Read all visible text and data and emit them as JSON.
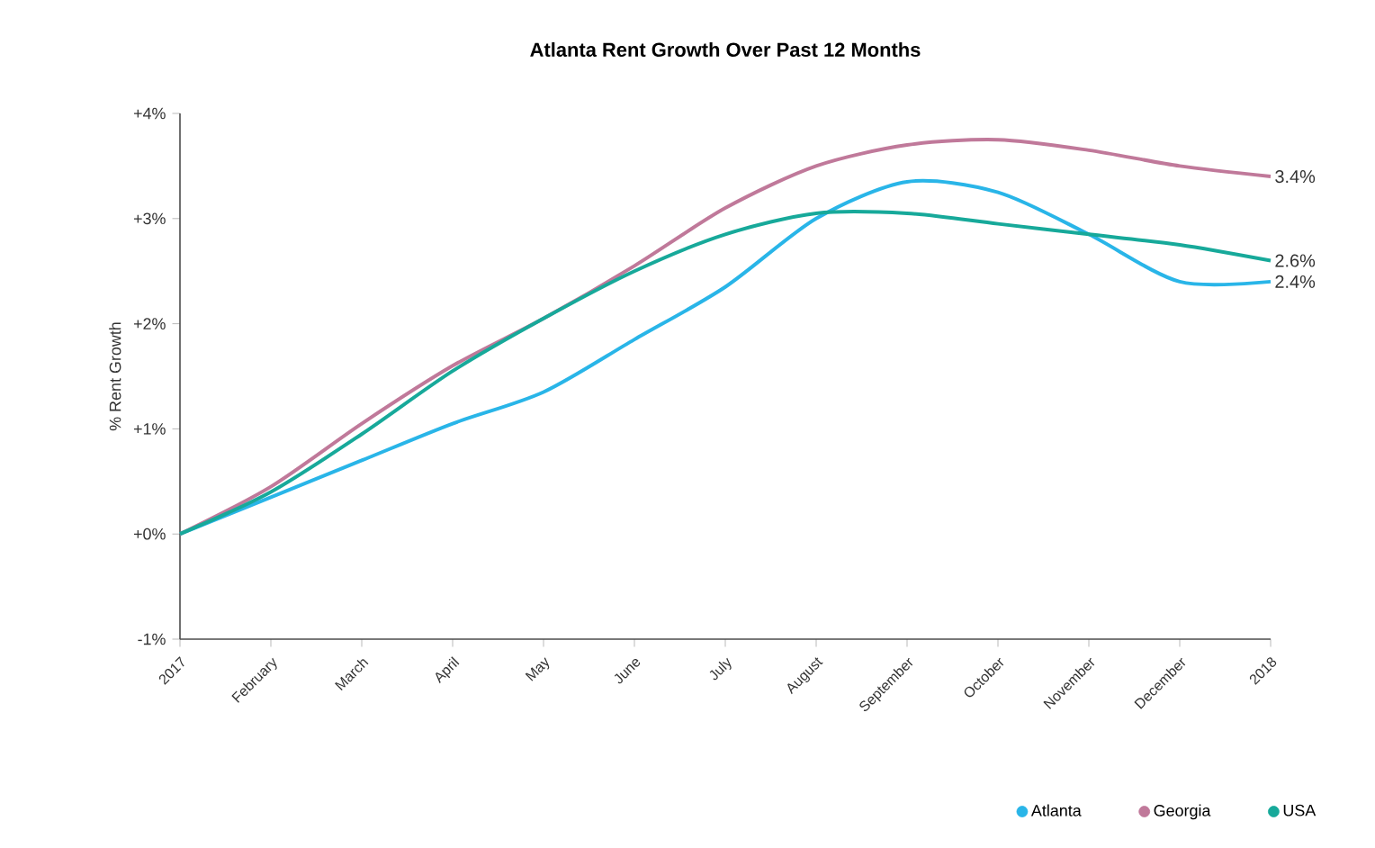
{
  "chart_data": {
    "type": "line",
    "title": "Atlanta Rent Growth Over Past 12 Months",
    "ylabel": "% Rent Growth",
    "categories": [
      "2017",
      "February",
      "March",
      "April",
      "May",
      "June",
      "July",
      "August",
      "September",
      "October",
      "November",
      "December",
      "2018"
    ],
    "series": [
      {
        "name": "Atlanta",
        "color": "#29b5e8",
        "values": [
          0,
          0.35,
          0.7,
          1.05,
          1.35,
          1.85,
          2.35,
          3.0,
          3.35,
          3.25,
          2.85,
          2.4,
          2.4
        ]
      },
      {
        "name": "Georgia",
        "color": "#c0799a",
        "values": [
          0,
          0.45,
          1.05,
          1.6,
          2.05,
          2.55,
          3.1,
          3.5,
          3.7,
          3.75,
          3.65,
          3.5,
          3.4
        ]
      },
      {
        "name": "USA",
        "color": "#17a99a",
        "values": [
          0,
          0.4,
          0.95,
          1.55,
          2.05,
          2.5,
          2.85,
          3.05,
          3.05,
          2.95,
          2.85,
          2.75,
          2.6
        ]
      }
    ],
    "ylim": [
      -1,
      4
    ],
    "yticks": [
      {
        "value": -1,
        "label": "-1%"
      },
      {
        "value": 0,
        "label": "+0%"
      },
      {
        "value": 1,
        "label": "+1%"
      },
      {
        "value": 2,
        "label": "+2%"
      },
      {
        "value": 3,
        "label": "+3%"
      },
      {
        "value": 4,
        "label": "+4%"
      }
    ],
    "annotations": [
      {
        "text": "3.4%",
        "x": "2018",
        "y": 3.4
      },
      {
        "text": "2.6%",
        "x": "2018",
        "y": 2.6
      },
      {
        "text": "2.4%",
        "x": "2018",
        "y": 2.4
      }
    ],
    "legend": "bottom right",
    "grid": false,
    "marker": "none",
    "line_style": "solid"
  }
}
